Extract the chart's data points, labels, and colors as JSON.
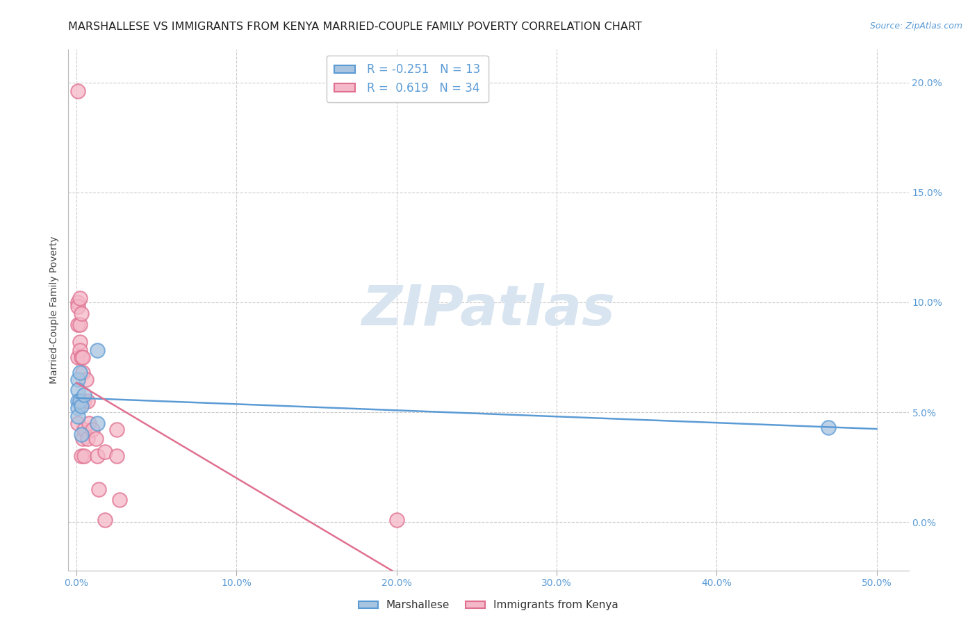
{
  "title": "MARSHALLESE VS IMMIGRANTS FROM KENYA MARRIED-COUPLE FAMILY POVERTY CORRELATION CHART",
  "source": "Source: ZipAtlas.com",
  "ylabel": "Married-Couple Family Poverty",
  "xlabel_ticks": [
    "0.0%",
    "10.0%",
    "20.0%",
    "30.0%",
    "40.0%",
    "50.0%"
  ],
  "xlabel_vals": [
    0.0,
    0.1,
    0.2,
    0.3,
    0.4,
    0.5
  ],
  "ylabel_ticks": [
    "0.0%",
    "5.0%",
    "10.0%",
    "15.0%",
    "20.0%"
  ],
  "ylabel_vals": [
    0.0,
    0.05,
    0.1,
    0.15,
    0.2
  ],
  "xlim": [
    -0.005,
    0.52
  ],
  "ylim": [
    -0.022,
    0.215
  ],
  "watermark": "ZIPatlas",
  "legend1_label": "Marshallese",
  "legend2_label": "Immigrants from Kenya",
  "marshallese_color": "#a8c4e0",
  "kenya_color": "#f4b8c8",
  "marshallese_line_color": "#5b9bd5",
  "kenya_line_color": "#e07090",
  "R_marshallese": -0.251,
  "N_marshallese": 13,
  "R_kenya": 0.619,
  "N_kenya": 34,
  "marshallese_x": [
    0.001,
    0.001,
    0.001,
    0.001,
    0.001,
    0.002,
    0.002,
    0.003,
    0.003,
    0.005,
    0.013,
    0.013,
    0.47
  ],
  "marshallese_y": [
    0.065,
    0.06,
    0.055,
    0.052,
    0.048,
    0.068,
    0.055,
    0.053,
    0.04,
    0.058,
    0.078,
    0.045,
    0.043
  ],
  "kenya_x": [
    0.001,
    0.001,
    0.001,
    0.001,
    0.001,
    0.001,
    0.002,
    0.002,
    0.002,
    0.002,
    0.003,
    0.003,
    0.003,
    0.003,
    0.004,
    0.004,
    0.004,
    0.005,
    0.005,
    0.005,
    0.006,
    0.007,
    0.007,
    0.008,
    0.01,
    0.012,
    0.013,
    0.014,
    0.018,
    0.018,
    0.025,
    0.025,
    0.027,
    0.2
  ],
  "kenya_y": [
    0.196,
    0.1,
    0.098,
    0.09,
    0.075,
    0.045,
    0.102,
    0.09,
    0.082,
    0.078,
    0.095,
    0.075,
    0.055,
    0.03,
    0.075,
    0.068,
    0.038,
    0.055,
    0.042,
    0.03,
    0.065,
    0.055,
    0.038,
    0.045,
    0.042,
    0.038,
    0.03,
    0.015,
    0.032,
    0.001,
    0.042,
    0.03,
    0.01,
    0.001
  ],
  "bg_color": "#ffffff",
  "grid_color": "#cccccc",
  "title_fontsize": 11.5,
  "axis_label_fontsize": 10,
  "tick_fontsize": 10,
  "watermark_color": "#d8e4f0",
  "watermark_fontsize": 58,
  "right_tick_color": "#5b9bd5",
  "bottom_tick_color": "#5b9bd5"
}
